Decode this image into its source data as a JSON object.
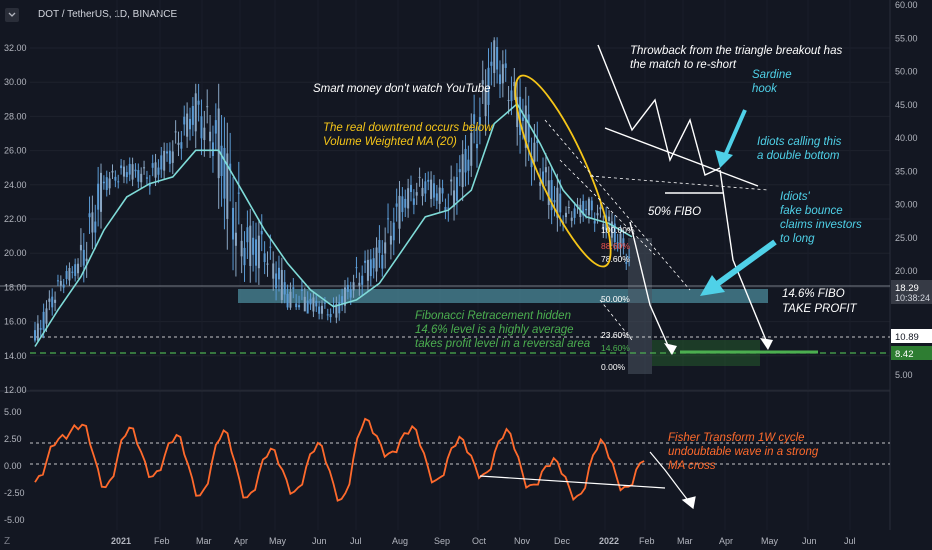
{
  "header": {
    "symbol_label": "DOT / TetherUS, 1D, BINANCE"
  },
  "colors": {
    "bg": "#131722",
    "candle_up": "#5b9bd5",
    "candle_down": "#8aa7c4",
    "vwma": "#7fdbd8",
    "fisher": "#ff6a2c",
    "axis_text": "#b2b5be",
    "yellow": "#f5c518",
    "cyan_text": "#4fd1e8",
    "green_text": "#4caf50",
    "fib_zone": "#4b8a9a",
    "tp_zone": "#2e7d32"
  },
  "left_axis": {
    "ticks": [
      "32.00",
      "30.00",
      "28.00",
      "26.00",
      "24.00",
      "22.00",
      "20.00",
      "18.00",
      "16.00",
      "14.00",
      "12.00"
    ],
    "osc_ticks": [
      "5.00",
      "2.50",
      "0.00",
      "-2.50",
      "-5.00"
    ]
  },
  "right_axis": {
    "ticks": [
      "60.00",
      "55.00",
      "50.00",
      "45.00",
      "40.00",
      "35.00",
      "30.00",
      "25.00",
      "20.00",
      "5.00"
    ],
    "price_tag": {
      "value": "18.29",
      "countdown": "10:38:24"
    },
    "level_tag_a": "10.89",
    "level_tag_b": "8.42"
  },
  "x_axis": {
    "labels": [
      "2021",
      "Feb",
      "Mar",
      "Apr",
      "May",
      "Jun",
      "Jul",
      "Aug",
      "Sep",
      "Oct",
      "Nov",
      "Dec",
      "2022",
      "Feb",
      "Mar",
      "Apr",
      "May",
      "Jun",
      "Jul"
    ]
  },
  "fib_levels": [
    {
      "label": "100.00%",
      "color": "#ffffff"
    },
    {
      "label": "88.60%",
      "color": "#ef5350"
    },
    {
      "label": "78.60%",
      "color": "#ffffff"
    },
    {
      "label": "50.00%",
      "color": "#ffffff"
    },
    {
      "label": "23.60%",
      "color": "#ffffff"
    },
    {
      "label": "14.60%",
      "color": "#4caf50"
    },
    {
      "label": "0.00%",
      "color": "#ffffff"
    }
  ],
  "annotations": {
    "smart_money": "Smart money don't watch YouTube",
    "downtrend_line1": "The real downtrend occurs below",
    "downtrend_line2": "Volume Weighted MA (20)",
    "throwback_line1": "Throwback from the triangle breakout has",
    "throwback_line2": "the match to re-short",
    "sardine_line1": "Sardine",
    "sardine_line2": "hook",
    "idiots_db_line1": "Idiots calling this",
    "idiots_db_line2": "a double bottom",
    "fibo50": "50% FIBO",
    "idiots_fb_line1": "Idiots'",
    "idiots_fb_line2": "fake bounce",
    "idiots_fb_line3": "claims investors",
    "idiots_fb_line4": "to long",
    "fibo146_line1": "14.6% FIBO",
    "fibo146_line2": "TAKE PROFIT",
    "fib_hidden_line1": "Fibonacci Retracement hidden",
    "fib_hidden_line2": "14.6% level is a highly average",
    "fib_hidden_line3": "takes profit level in a reversal area",
    "fisher_line1": "Fisher Transform 1W cycle",
    "fisher_line2": "undoubtable wave in a strong",
    "fisher_line3": "MA cross"
  },
  "chart_data": [
    {
      "type": "line",
      "name": "",
      "x": [
        "Jan-01",
        "Jan-15",
        "Feb-01",
        "Feb-15",
        "Mar-01",
        "Mar-15",
        "Apr-01",
        "Apr-15",
        "May-01",
        "May-15",
        "Jun-01",
        "Jun-15",
        "Jul-01",
        "Jul-15",
        "Aug-01",
        "Aug-15",
        "Sep-01",
        "Sep-15",
        "Oct-01",
        "Oct-15",
        "Nov-01",
        "Nov-15",
        "Dec-01",
        "Dec-15",
        "Jan-01",
        "Jan-15",
        "Jan-25"
      ],
      "close": [
        9.4,
        17.5,
        21.0,
        33.0,
        35.0,
        34.0,
        38.0,
        44.0,
        39.0,
        24.0,
        23.0,
        16.0,
        15.0,
        13.5,
        18.5,
        22.0,
        30.0,
        33.0,
        30.0,
        38.0,
        52.0,
        45.0,
        35.0,
        28.0,
        29.5,
        27.0,
        21.0
      ],
      "high": [
        9.8,
        18.0,
        22.0,
        36.0,
        37.0,
        36.0,
        40.0,
        46.0,
        48.0,
        33.0,
        28.0,
        24.0,
        18.0,
        17.0,
        20.0,
        25.0,
        35.0,
        36.0,
        34.0,
        42.0,
        55.0,
        50.0,
        40.0,
        32.0,
        31.0,
        29.0,
        23.0
      ],
      "low": [
        9.1,
        16.0,
        18.0,
        30.0,
        30.0,
        31.0,
        34.0,
        39.0,
        30.0,
        15.0,
        18.0,
        15.0,
        14.0,
        12.0,
        14.0,
        19.0,
        26.0,
        28.0,
        27.0,
        34.0,
        45.0,
        40.0,
        30.0,
        25.0,
        26.0,
        22.0,
        20.0
      ],
      "vwma": [
        8.5,
        14.0,
        19.0,
        26.0,
        31.0,
        33.0,
        34.0,
        38.0,
        38.0,
        32.0,
        26.0,
        21.0,
        17.0,
        14.5,
        15.5,
        18.0,
        23.0,
        28.0,
        29.0,
        32.0,
        42.0,
        45.0,
        39.0,
        32.0,
        28.0,
        27.0,
        25.0
      ],
      "ylim": [
        8,
        34
      ],
      "right_ylim": [
        5,
        60
      ]
    },
    {
      "type": "line",
      "name": "",
      "x": [
        "Jan-01",
        "Jan-15",
        "Feb-01",
        "Feb-15",
        "Mar-01",
        "Mar-15",
        "Apr-01",
        "Apr-15",
        "May-01",
        "May-15",
        "Jun-01",
        "Jun-15",
        "Jul-01",
        "Jul-15",
        "Aug-01",
        "Aug-15",
        "Sep-01",
        "Sep-15",
        "Oct-01",
        "Oct-15",
        "Nov-01",
        "Nov-15",
        "Dec-01",
        "Dec-15",
        "Jan-01",
        "Jan-15",
        "Jan-25"
      ],
      "values": [
        -1.5,
        2.5,
        3.8,
        -2.0,
        3.5,
        -1.0,
        2.8,
        -2.8,
        3.2,
        -3.0,
        1.5,
        -2.5,
        2.0,
        -3.2,
        4.2,
        1.0,
        3.5,
        -1.5,
        2.5,
        -1.0,
        3.2,
        -2.0,
        0.5,
        -3.0,
        2.2,
        -2.2,
        1.0
      ],
      "ylim": [
        -5,
        5
      ]
    }
  ]
}
